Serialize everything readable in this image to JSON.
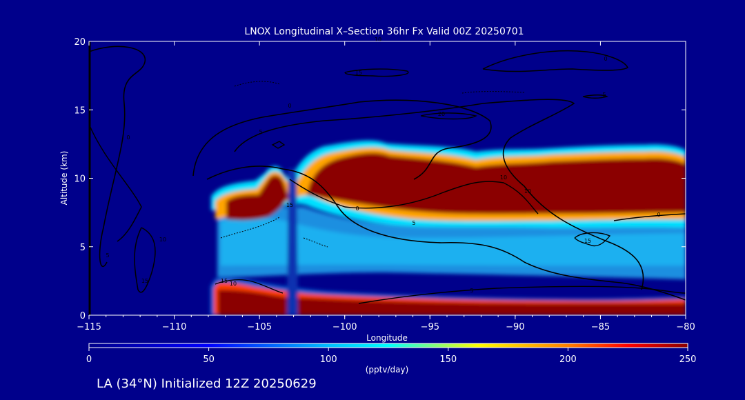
{
  "chart_data": {
    "type": "heatmap",
    "title": "LNOX Longitudinal X–Section 36hr  Fx Valid 00Z 20250701",
    "xlabel": "Longitude",
    "ylabel": "Altitude (km)",
    "xlim": [
      -115,
      -80
    ],
    "ylim": [
      0,
      20
    ],
    "x_ticks": [
      -115,
      -110,
      -105,
      -100,
      -95,
      -90,
      -85,
      -80
    ],
    "x_tick_labels": [
      "−115",
      "−110",
      "−105",
      "−100",
      "−95",
      "−90",
      "−85",
      "−80"
    ],
    "y_ticks": [
      0,
      5,
      10,
      15,
      20
    ],
    "y_tick_labels": [
      "0",
      "5",
      "10",
      "15",
      "20"
    ],
    "colorbar": {
      "label": "(pptv/day)",
      "min": 0,
      "max": 250,
      "ticks": [
        0,
        50,
        100,
        150,
        200,
        250
      ],
      "tick_labels": [
        "0",
        "50",
        "100",
        "150",
        "200",
        "250"
      ],
      "colors": [
        "#00008b",
        "#0000ff",
        "#00bfff",
        "#00ffff",
        "#ffff00",
        "#ff7f00",
        "#ff0000",
        "#8b0000"
      ]
    },
    "shaded_regions": [
      {
        "name": "upper-tropospheric-maximum",
        "x": [
          -107.7,
          -80
        ],
        "y": [
          6.8,
          12.3
        ],
        "peak": 250
      },
      {
        "name": "convective-column-1",
        "x": [
          -106.5,
          -103.6
        ],
        "y": [
          4.5,
          10.8
        ],
        "peak": 250
      },
      {
        "name": "mid-level-plateau",
        "x": [
          -107,
          -80
        ],
        "y": [
          2.5,
          6.8
        ],
        "peak": 80
      },
      {
        "name": "boundary-layer-maximum",
        "x": [
          -108,
          -80
        ],
        "y": [
          0,
          2.3
        ],
        "peak": 250
      }
    ],
    "contour_labels": [
      "0",
      "5",
      "10",
      "15",
      "0",
      "5",
      "10",
      "15",
      "20",
      "0",
      "5",
      "10",
      "15",
      "0",
      "5",
      "10",
      "15",
      "0",
      "5",
      "10",
      "15"
    ]
  },
  "footer": {
    "run_info": "LA (34°N) Initialized 12Z 20250629"
  },
  "colors": {
    "background": "#00008b",
    "text": "#ffffff",
    "contour": "#000000"
  }
}
